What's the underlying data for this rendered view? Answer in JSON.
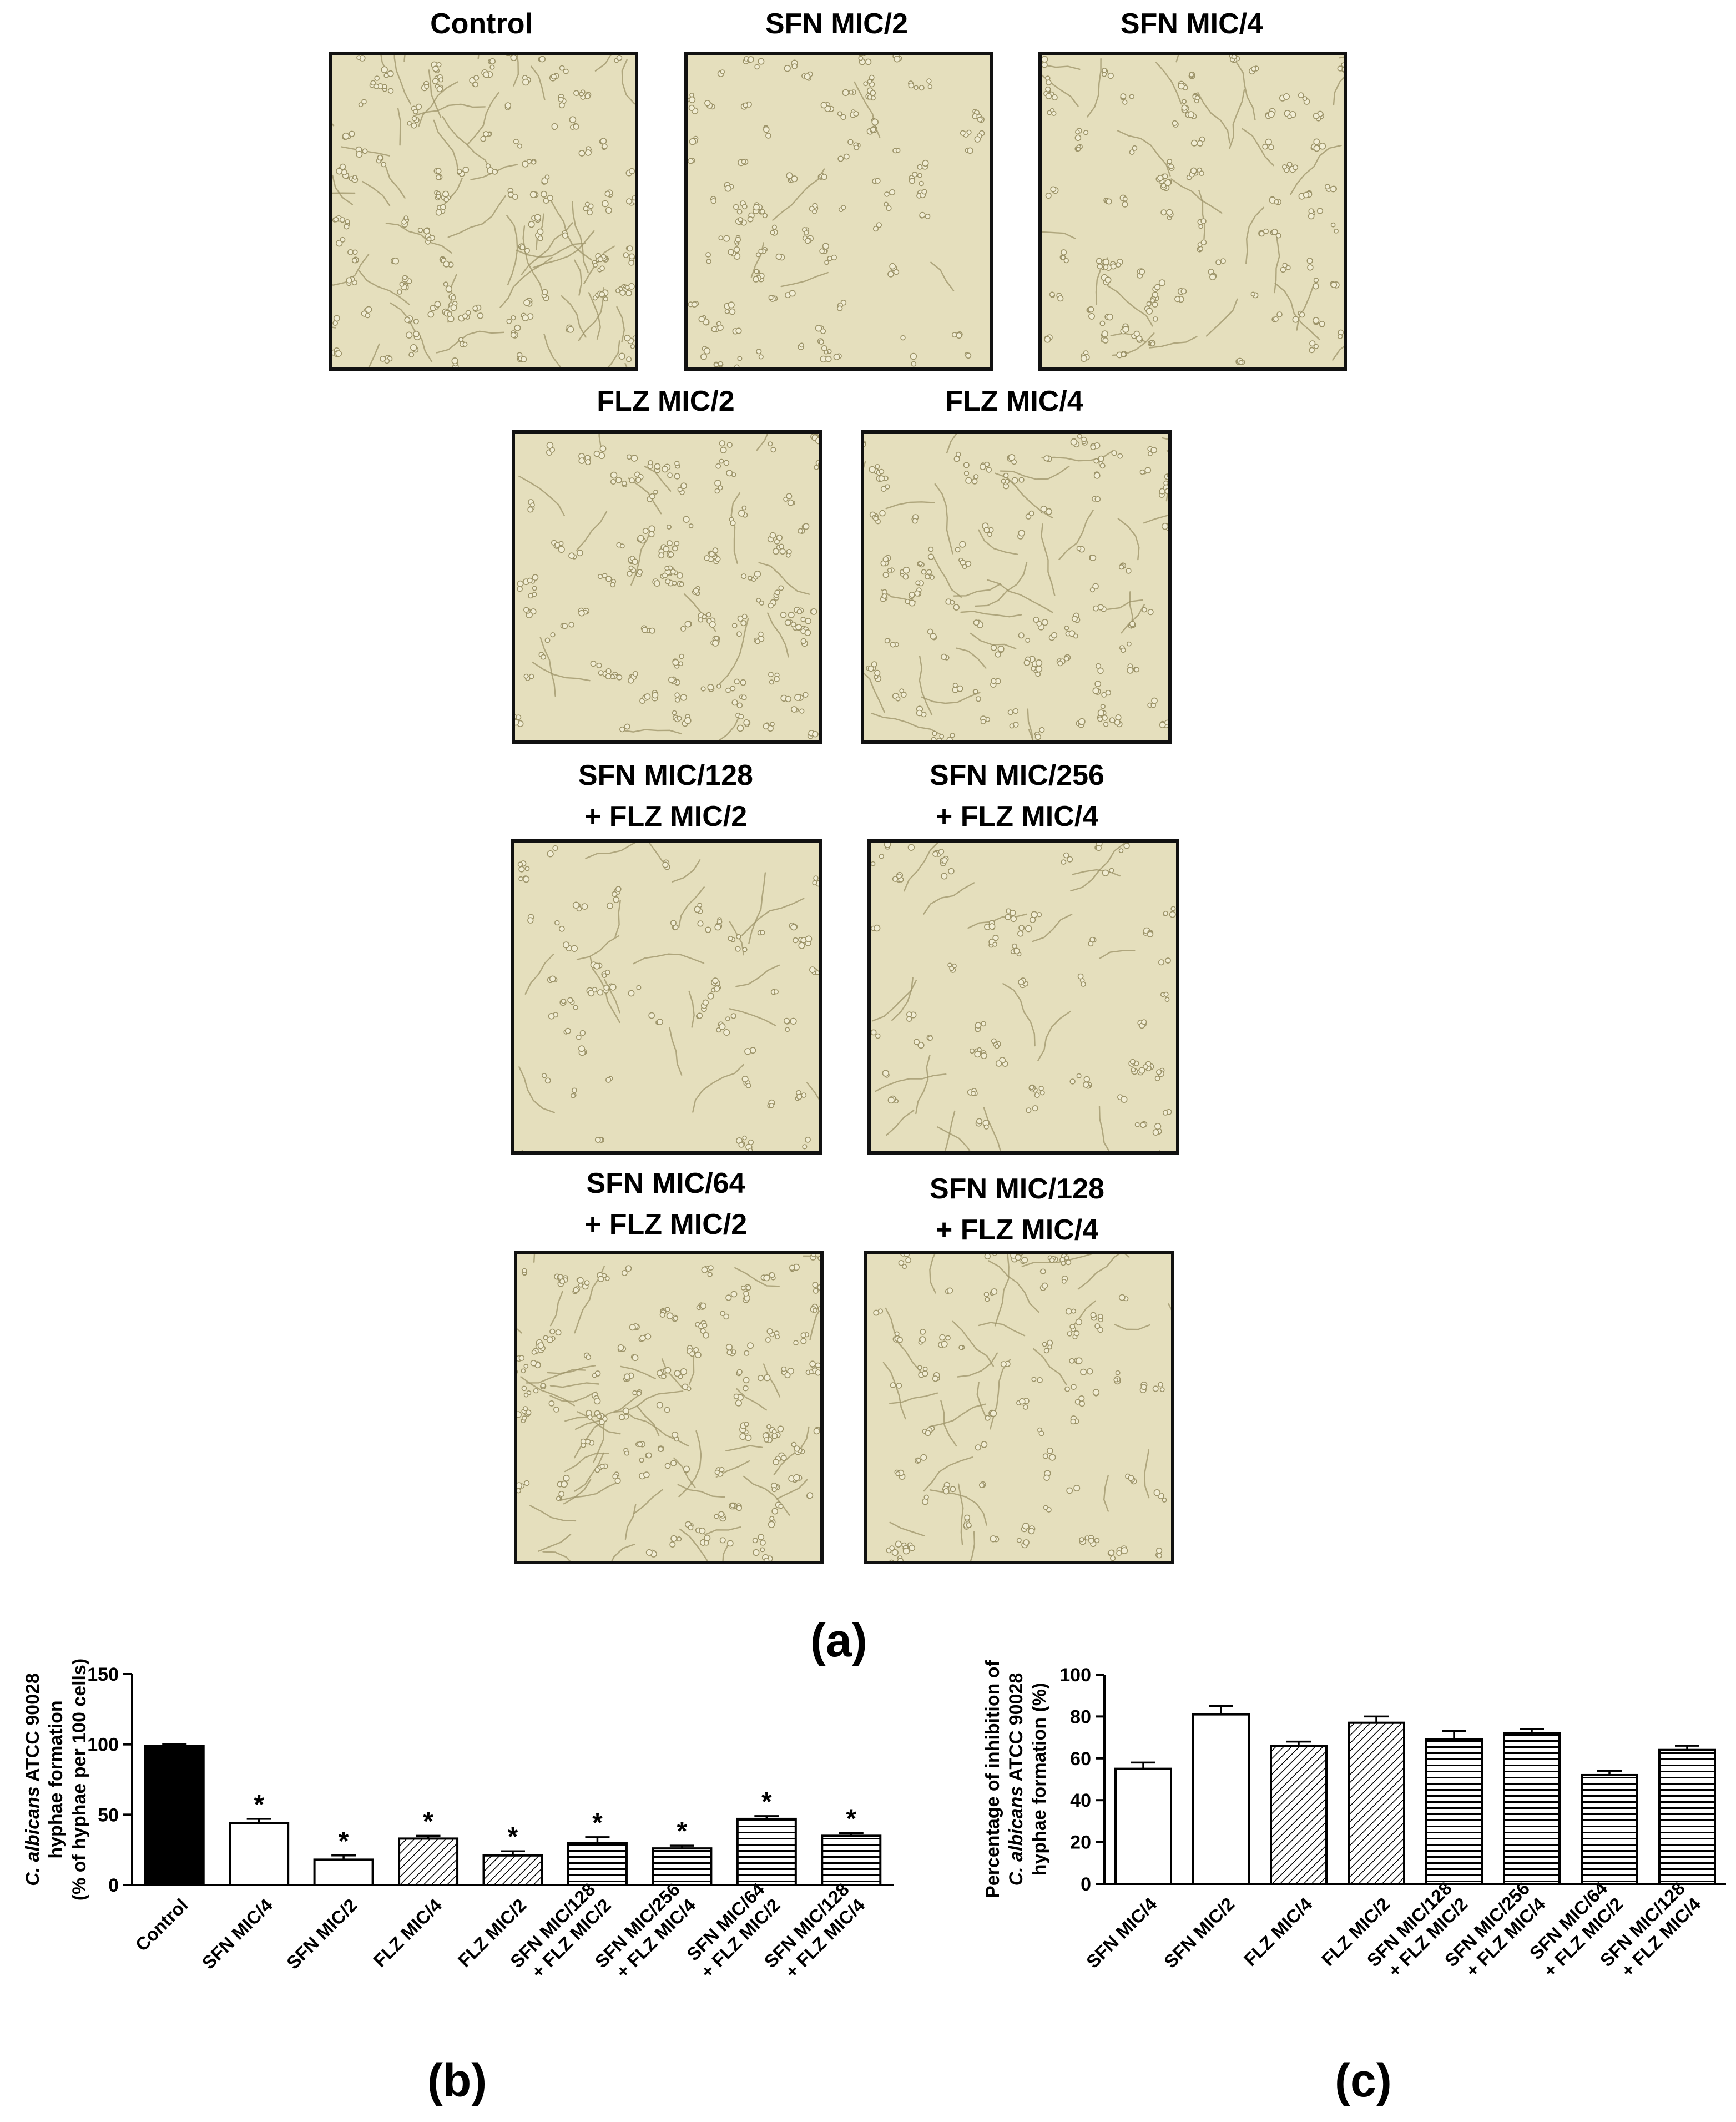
{
  "micrographs": [
    {
      "id": "control",
      "lines": [
        "Control"
      ]
    },
    {
      "id": "sfn-mic2",
      "lines": [
        "SFN MIC/2"
      ]
    },
    {
      "id": "sfn-mic4",
      "lines": [
        "SFN MIC/4"
      ]
    },
    {
      "id": "flz-mic2",
      "lines": [
        "FLZ MIC/2"
      ]
    },
    {
      "id": "flz-mic4",
      "lines": [
        "FLZ MIC/4"
      ]
    },
    {
      "id": "sfn128-flz2",
      "lines": [
        "SFN MIC/128",
        "+ FLZ MIC/2"
      ]
    },
    {
      "id": "sfn256-flz4",
      "lines": [
        "SFN MIC/256",
        "+ FLZ MIC/4"
      ]
    },
    {
      "id": "sfn64-flz2",
      "lines": [
        "SFN MIC/64",
        "+ FLZ MIC/2"
      ]
    },
    {
      "id": "sfn128-flz4",
      "lines": [
        "SFN MIC/128",
        "+ FLZ MIC/4"
      ]
    }
  ],
  "panel_labels": {
    "a": "(a)",
    "b": "(b)",
    "c": "(c)"
  },
  "colors": {
    "micrograph_background": "#e5dfbd",
    "cell_stroke": "#9c9368",
    "bar_stroke": "#000000",
    "control_fill": "#000000"
  },
  "chart_data": [
    {
      "type": "bar",
      "ylabel_lines": [
        "C. albicans ATCC 90028",
        "hyphae formation",
        "(% of hyphae per 100 cells)"
      ],
      "ylabel_italic_part": "C. albicans",
      "ylim": [
        0,
        150
      ],
      "yticks": [
        0,
        50,
        100,
        150
      ],
      "bars": [
        {
          "label_lines": [
            "Control"
          ],
          "value": 99,
          "error": 1,
          "pattern": "solid",
          "sig": ""
        },
        {
          "label_lines": [
            "SFN MIC/4"
          ],
          "value": 44,
          "error": 3,
          "pattern": "white",
          "sig": "*"
        },
        {
          "label_lines": [
            "SFN MIC/2"
          ],
          "value": 18,
          "error": 3,
          "pattern": "white",
          "sig": "*"
        },
        {
          "label_lines": [
            "FLZ MIC/4"
          ],
          "value": 33,
          "error": 2,
          "pattern": "diagonal",
          "sig": "*"
        },
        {
          "label_lines": [
            "FLZ MIC/2"
          ],
          "value": 21,
          "error": 3,
          "pattern": "diagonal",
          "sig": "*"
        },
        {
          "label_lines": [
            "SFN MIC/128",
            "+ FLZ MIC/2"
          ],
          "value": 30,
          "error": 4,
          "pattern": "horizontal",
          "sig": "*"
        },
        {
          "label_lines": [
            "SFN MIC/256",
            "+ FLZ MIC/4"
          ],
          "value": 26,
          "error": 2,
          "pattern": "horizontal",
          "sig": "*"
        },
        {
          "label_lines": [
            "SFN MIC/64",
            "+ FLZ MIC/2"
          ],
          "value": 47,
          "error": 2,
          "pattern": "horizontal",
          "sig": "*"
        },
        {
          "label_lines": [
            "SFN MIC/128",
            "+ FLZ MIC/4"
          ],
          "value": 35,
          "error": 2,
          "pattern": "horizontal",
          "sig": "*"
        }
      ]
    },
    {
      "type": "bar",
      "ylabel_lines": [
        "Percentage of inhibition of",
        "C. albicans ATCC 90028",
        "hyphae formation (%)"
      ],
      "ylabel_italic_part": "C. albicans",
      "ylim": [
        0,
        100
      ],
      "yticks": [
        0,
        20,
        40,
        60,
        80,
        100
      ],
      "bars": [
        {
          "label_lines": [
            "SFN MIC/4"
          ],
          "value": 55,
          "error": 3,
          "pattern": "white"
        },
        {
          "label_lines": [
            "SFN MIC/2"
          ],
          "value": 81,
          "error": 4,
          "pattern": "white"
        },
        {
          "label_lines": [
            "FLZ MIC/4"
          ],
          "value": 66,
          "error": 2,
          "pattern": "diagonal"
        },
        {
          "label_lines": [
            "FLZ MIC/2"
          ],
          "value": 77,
          "error": 3,
          "pattern": "diagonal"
        },
        {
          "label_lines": [
            "SFN MIC/128",
            "+ FLZ MIC/2"
          ],
          "value": 69,
          "error": 4,
          "pattern": "horizontal"
        },
        {
          "label_lines": [
            "SFN MIC/256",
            "+ FLZ MIC/4"
          ],
          "value": 72,
          "error": 2,
          "pattern": "horizontal"
        },
        {
          "label_lines": [
            "SFN MIC/64",
            "+ FLZ MIC/2"
          ],
          "value": 52,
          "error": 2,
          "pattern": "horizontal"
        },
        {
          "label_lines": [
            "SFN MIC/128",
            "+ FLZ MIC/4"
          ],
          "value": 64,
          "error": 2,
          "pattern": "horizontal"
        }
      ]
    }
  ]
}
